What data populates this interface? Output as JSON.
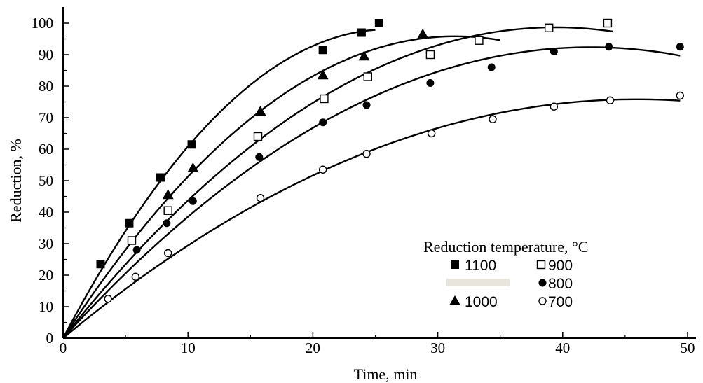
{
  "chart_data": {
    "type": "scatter",
    "title": "",
    "xlabel": "Time, min",
    "ylabel": "Reduction, %",
    "xlim": [
      0,
      50
    ],
    "ylim": [
      0,
      100
    ],
    "xticks": [
      0,
      10,
      20,
      30,
      40,
      50
    ],
    "yticks": [
      0,
      10,
      20,
      30,
      40,
      50,
      60,
      70,
      80,
      90,
      100
    ],
    "grid": false,
    "legend": {
      "title": "Reduction temperature, °C",
      "placement": "bottom-right"
    },
    "series": [
      {
        "name": "1100",
        "marker": "filled-square",
        "x": [
          0,
          3,
          5.3,
          7.8,
          10.3,
          20.8,
          23.9,
          25.3
        ],
        "y": [
          0,
          23.5,
          36.5,
          51,
          61.5,
          91.5,
          97,
          100
        ],
        "curve_end_x": 25
      },
      {
        "name": "1000",
        "marker": "filled-triangle",
        "x": [
          0,
          8.4,
          10.4,
          15.8,
          20.8,
          24.1,
          28.8
        ],
        "y": [
          0,
          45.5,
          54,
          72,
          83.5,
          89.5,
          96.5
        ],
        "curve_end_x": 35
      },
      {
        "name": "900",
        "marker": "open-square",
        "x": [
          0,
          5.5,
          8.4,
          15.6,
          20.9,
          24.4,
          29.4,
          33.3,
          38.9,
          43.6
        ],
        "y": [
          0,
          31,
          40.5,
          64,
          76,
          83,
          90,
          94.5,
          98.5,
          100
        ],
        "curve_end_x": 44
      },
      {
        "name": "800",
        "marker": "filled-circle",
        "x": [
          0,
          5.9,
          8.3,
          10.4,
          15.7,
          20.8,
          24.3,
          29.4,
          34.3,
          39.3,
          43.7,
          49.4
        ],
        "y": [
          0,
          28,
          36.5,
          43.5,
          57.5,
          68.5,
          74,
          81,
          86,
          91,
          92.5,
          92.5
        ],
        "curve_end_x": 49.4
      },
      {
        "name": "700",
        "marker": "open-circle",
        "x": [
          0,
          3.6,
          5.8,
          8.4,
          15.8,
          20.8,
          24.3,
          29.5,
          34.4,
          39.3,
          43.8,
          49.4
        ],
        "y": [
          0,
          12.5,
          19.5,
          27,
          44.5,
          53.5,
          58.5,
          65,
          69.5,
          73.5,
          75.5,
          77
        ],
        "curve_end_x": 49.4
      }
    ]
  }
}
